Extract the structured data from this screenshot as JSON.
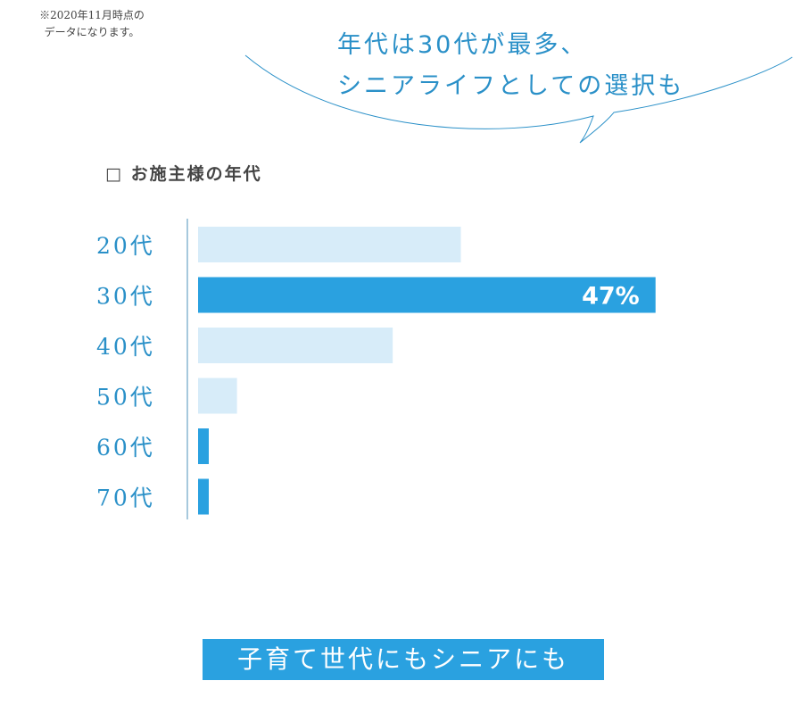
{
  "note": {
    "line1": "※2020年11月時点の",
    "line2": "データになります。"
  },
  "headline": {
    "line1": "年代は30代が最多、",
    "line2": "シニアライフとしての選択も"
  },
  "chart_data": {
    "type": "bar",
    "orientation": "horizontal",
    "title": "□ お施主様の年代",
    "categories": [
      "20代",
      "30代",
      "40代",
      "50代",
      "60代",
      "70代"
    ],
    "values": [
      27,
      47,
      20,
      4,
      1,
      1
    ],
    "data_labels": [
      "",
      "47%",
      "",
      "",
      "",
      ""
    ],
    "highlight_index": 1,
    "xlim": [
      0,
      55
    ],
    "grid": false,
    "colors": {
      "bar": "#d7ecf9",
      "highlight": "#2aa1e0",
      "small_bar": "#2aa1e0",
      "axis": "#a7c9dd",
      "category_text": "#2a90c8"
    }
  },
  "bottom_label": "子育て世代にもシニアにも"
}
